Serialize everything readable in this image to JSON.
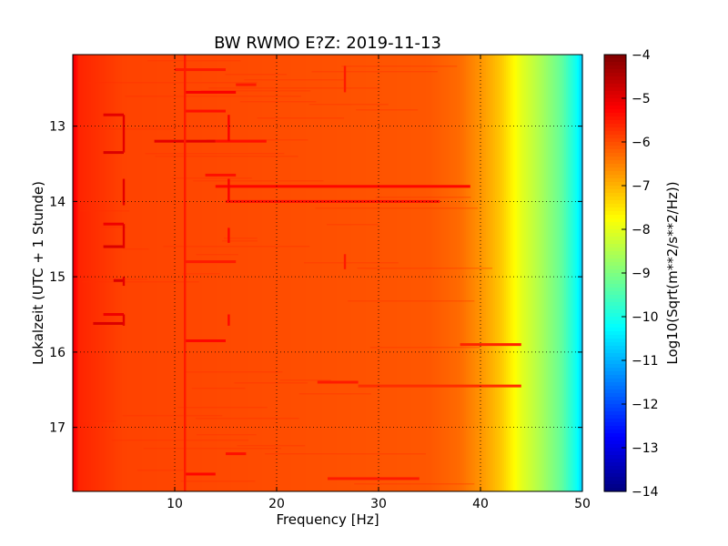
{
  "chart_data": {
    "type": "heatmap",
    "title": "BW RWMO E?Z: 2019-11-13",
    "xlabel": "Frequency [Hz]",
    "ylabel": "Lokalzeit (UTC + 1 Stunde)",
    "xlim": [
      0,
      50
    ],
    "ylim": [
      17.85,
      12.05
    ],
    "x_ticks": [
      10,
      20,
      30,
      40,
      50
    ],
    "x_tick_labels": [
      "10",
      "20",
      "30",
      "40",
      "50"
    ],
    "y_ticks": [
      13,
      14,
      15,
      16,
      17
    ],
    "y_tick_labels": [
      "13",
      "14",
      "15",
      "16",
      "17"
    ],
    "grid": true,
    "colormap": "jet",
    "colorbar": {
      "label": "Log10(Sqrt(m**2/s**2/Hz))",
      "range": [
        -14,
        -4
      ],
      "ticks": [
        -4,
        -5,
        -6,
        -7,
        -8,
        -9,
        -10,
        -11,
        -12,
        -13,
        -14
      ],
      "tick_labels": [
        "−4",
        "−5",
        "−6",
        "−7",
        "−8",
        "−9",
        "−10",
        "−11",
        "−12",
        "−13",
        "−14"
      ]
    },
    "background_level_by_frequency": [
      {
        "freq": 0.0,
        "value": -5.0
      },
      {
        "freq": 0.6,
        "value": -5.6
      },
      {
        "freq": 5,
        "value": -5.9
      },
      {
        "freq": 35,
        "value": -6.1
      },
      {
        "freq": 38,
        "value": -6.3
      },
      {
        "freq": 40,
        "value": -6.7
      },
      {
        "freq": 42,
        "value": -7.2
      },
      {
        "freq": 44,
        "value": -8.0
      },
      {
        "freq": 46,
        "value": -8.6
      },
      {
        "freq": 48,
        "value": -9.3
      },
      {
        "freq": 49.5,
        "value": -10.2
      },
      {
        "freq": 50,
        "value": -10.8
      }
    ],
    "vertical_lines": [
      {
        "freq": 5.0,
        "start": 12.85,
        "end": 13.35,
        "value": -5.0
      },
      {
        "freq": 5.0,
        "start": 13.7,
        "end": 14.05,
        "value": -5.0
      },
      {
        "freq": 5.0,
        "start": 14.3,
        "end": 14.62,
        "value": -5.0
      },
      {
        "freq": 5.0,
        "start": 15.0,
        "end": 15.12,
        "value": -5.0
      },
      {
        "freq": 5.0,
        "start": 15.5,
        "end": 15.65,
        "value": -5.0
      },
      {
        "freq": 15.3,
        "start": 12.85,
        "end": 13.2,
        "value": -5.2
      },
      {
        "freq": 15.3,
        "start": 13.7,
        "end": 14.0,
        "value": -5.2
      },
      {
        "freq": 15.3,
        "start": 14.35,
        "end": 14.55,
        "value": -5.3
      },
      {
        "freq": 15.3,
        "start": 15.5,
        "end": 15.65,
        "value": -5.3
      },
      {
        "freq": 11.0,
        "start": 12.05,
        "end": 17.85,
        "value": -5.5
      },
      {
        "freq": 26.7,
        "start": 12.2,
        "end": 12.55,
        "value": -5.5
      },
      {
        "freq": 26.7,
        "start": 14.7,
        "end": 14.9,
        "value": -5.5
      }
    ],
    "horizontal_lines": [
      {
        "time": 12.85,
        "start": 3,
        "end": 5,
        "value": -5.0
      },
      {
        "time": 13.35,
        "start": 3,
        "end": 5,
        "value": -4.9
      },
      {
        "time": 13.2,
        "start": 8,
        "end": 14,
        "value": -5.0
      },
      {
        "time": 13.2,
        "start": 14,
        "end": 19,
        "value": -5.4
      },
      {
        "time": 12.55,
        "start": 11,
        "end": 16,
        "value": -5.2
      },
      {
        "time": 12.45,
        "start": 16,
        "end": 18,
        "value": -5.5
      },
      {
        "time": 12.25,
        "start": 10,
        "end": 15,
        "value": -5.5
      },
      {
        "time": 12.8,
        "start": 11,
        "end": 15,
        "value": -5.4
      },
      {
        "time": 13.65,
        "start": 13,
        "end": 16,
        "value": -5.4
      },
      {
        "time": 13.8,
        "start": 14,
        "end": 39,
        "value": -5.3
      },
      {
        "time": 14.0,
        "start": 15,
        "end": 36,
        "value": -5.4
      },
      {
        "time": 14.3,
        "start": 3,
        "end": 5,
        "value": -5.1
      },
      {
        "time": 14.6,
        "start": 3,
        "end": 5,
        "value": -4.9
      },
      {
        "time": 14.8,
        "start": 11,
        "end": 16,
        "value": -5.5
      },
      {
        "time": 15.05,
        "start": 4,
        "end": 5,
        "value": -4.9
      },
      {
        "time": 15.5,
        "start": 3,
        "end": 5,
        "value": -5.1
      },
      {
        "time": 15.62,
        "start": 2,
        "end": 5,
        "value": -4.9
      },
      {
        "time": 15.85,
        "start": 11,
        "end": 15,
        "value": -5.3
      },
      {
        "time": 15.9,
        "start": 38,
        "end": 44,
        "value": -5.6
      },
      {
        "time": 16.4,
        "start": 24,
        "end": 28,
        "value": -5.5
      },
      {
        "time": 16.45,
        "start": 28,
        "end": 44,
        "value": -5.7
      },
      {
        "time": 17.35,
        "start": 15,
        "end": 17,
        "value": -5.4
      },
      {
        "time": 17.62,
        "start": 11,
        "end": 14,
        "value": -5.3
      },
      {
        "time": 17.68,
        "start": 25,
        "end": 34,
        "value": -5.5
      }
    ]
  }
}
